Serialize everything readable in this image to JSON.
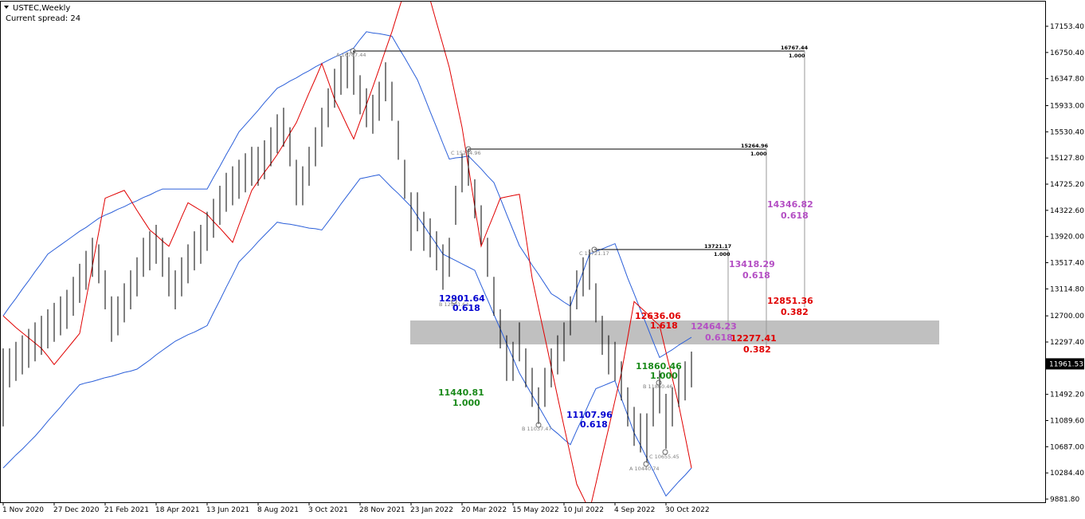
{
  "chart_data": {
    "type": "ohlc",
    "title": "USTEC,Weekly",
    "subtitle": "Current spread: 24",
    "categories": [
      "1 Nov 2020",
      null,
      null,
      null,
      null,
      null,
      null,
      null,
      "27 Dec 2020",
      null,
      null,
      null,
      null,
      null,
      null,
      null,
      "21 Feb 2021",
      null,
      null,
      null,
      null,
      null,
      null,
      null,
      "18 Apr 2021",
      null,
      null,
      null,
      null,
      null,
      null,
      null,
      "13 Jun 2021",
      null,
      null,
      null,
      null,
      null,
      null,
      null,
      "8 Aug 2021",
      null,
      null,
      null,
      null,
      null,
      null,
      null,
      "3 Oct 2021",
      null,
      null,
      null,
      null,
      null,
      null,
      null,
      "28 Nov 2021",
      null,
      null,
      null,
      null,
      null,
      null,
      null,
      "23 Jan 2022",
      null,
      null,
      null,
      null,
      null,
      null,
      null,
      "20 Mar 2022",
      null,
      null,
      null,
      null,
      null,
      null,
      null,
      "15 May 2022",
      null,
      null,
      null,
      null,
      null,
      null,
      null,
      "10 Jul 2022",
      null,
      null,
      null,
      null,
      null,
      null,
      null,
      "4 Sep 2022",
      null,
      null,
      null,
      null,
      null,
      null,
      null,
      "30 Oct 2022",
      null,
      null,
      null,
      null
    ],
    "high": [
      12200,
      12200,
      12300,
      12400,
      12500,
      12600,
      12700,
      12800,
      12900,
      13000,
      13100,
      13300,
      13500,
      13700,
      13900,
      13800,
      13400,
      13000,
      13000,
      13200,
      13400,
      13600,
      13900,
      14000,
      14100,
      13900,
      13600,
      13400,
      13600,
      13800,
      14000,
      14100,
      14300,
      14500,
      14700,
      14900,
      15000,
      15100,
      15200,
      15300,
      15300,
      15400,
      15600,
      15800,
      15900,
      15600,
      15100,
      15000,
      15300,
      15600,
      15900,
      16200,
      16500,
      16700,
      16750,
      16767.44,
      16400,
      16200,
      16100,
      16300,
      16600,
      16300,
      15700,
      15100,
      14600,
      14600,
      14300,
      14200,
      14000,
      13800,
      13900,
      14700,
      15200,
      15264.96,
      14800,
      14400,
      13900,
      13300,
      12800,
      12400,
      12300,
      12600,
      12200,
      11900,
      11600,
      11900,
      12200,
      12400,
      12600,
      13000,
      13400,
      13600,
      13721.17,
      13200,
      12700,
      12400,
      12300,
      12000,
      11600,
      11300,
      11200,
      11200,
      11600,
      11860.46,
      11500,
      11600,
      11900,
      12000,
      12150
    ],
    "low": [
      11000,
      11600,
      11700,
      11800,
      11900,
      12000,
      12100,
      12200,
      12300,
      12400,
      12500,
      12700,
      12900,
      13100,
      13300,
      13200,
      12800,
      12300,
      12400,
      12600,
      12800,
      13000,
      13300,
      13400,
      13500,
      13300,
      13000,
      12800,
      13000,
      13200,
      13400,
      13500,
      13700,
      13900,
      14100,
      14300,
      14400,
      14500,
      14600,
      14700,
      14700,
      14800,
      15000,
      15200,
      15300,
      15000,
      14400,
      14400,
      14700,
      15000,
      15300,
      15600,
      15900,
      16100,
      16200,
      16100,
      15800,
      15600,
      15500,
      15700,
      16000,
      15700,
      15100,
      14500,
      13700,
      14000,
      13700,
      13600,
      13400,
      13100,
      13300,
      14100,
      14600,
      14700,
      14200,
      13800,
      13300,
      12700,
      12200,
      11700,
      11700,
      12000,
      11600,
      11300,
      11037.47,
      11300,
      11600,
      11800,
      12000,
      12400,
      12800,
      13000,
      13100,
      12600,
      12100,
      11800,
      11700,
      11400,
      11000,
      10700,
      10600,
      10440.74,
      11000,
      11200,
      10655.45,
      11000,
      11300,
      11400,
      11600
    ],
    "bar_color": "#000000",
    "series": [
      {
        "color": "#2b5fd9",
        "values": [
          12700,
          12840,
          12970,
          13110,
          13240,
          13380,
          13510,
          13650,
          13720,
          13790,
          13860,
          13930,
          14000,
          14060,
          14130,
          14200,
          14250,
          14290,
          14340,
          14380,
          14430,
          14470,
          14520,
          14560,
          14610,
          14650,
          14650,
          14650,
          14650,
          14650,
          14650,
          14650,
          14650,
          14830,
          15000,
          15180,
          15350,
          15530,
          15640,
          15750,
          15860,
          15980,
          16090,
          16200,
          16250,
          16310,
          16360,
          16420,
          16470,
          16530,
          16580,
          16630,
          16680,
          16720,
          16770,
          16820,
          16950,
          17070,
          17050,
          17040,
          17020,
          17000,
          16830,
          16670,
          16500,
          16330,
          16090,
          15840,
          15600,
          15350,
          15110,
          15130,
          15140,
          15160,
          15060,
          14960,
          14850,
          14750,
          14510,
          14260,
          14020,
          13780,
          13630,
          13480,
          13340,
          13190,
          13040,
          12980,
          12910,
          12850,
          13120,
          13380,
          13650,
          13690,
          13730,
          13770,
          13810,
          13550,
          13280,
          13040,
          12790,
          12550,
          12300,
          12060,
          12120,
          12180,
          12250,
          12310,
          12370
        ]
      },
      {
        "color": "#2b5fd9",
        "values": [
          10360,
          10460,
          10560,
          10650,
          10750,
          10850,
          10960,
          11080,
          11190,
          11300,
          11420,
          11530,
          11640,
          11670,
          11690,
          11720,
          11750,
          11770,
          11800,
          11830,
          11850,
          11880,
          11950,
          12020,
          12100,
          12170,
          12240,
          12310,
          12360,
          12410,
          12450,
          12500,
          12550,
          12750,
          12940,
          13140,
          13330,
          13530,
          13630,
          13730,
          13840,
          13940,
          14040,
          14140,
          14120,
          14110,
          14090,
          14070,
          14050,
          14040,
          14020,
          14150,
          14280,
          14420,
          14550,
          14680,
          14810,
          14830,
          14850,
          14870,
          14770,
          14670,
          14580,
          14480,
          14380,
          14230,
          14090,
          13940,
          13800,
          13650,
          13600,
          13550,
          13500,
          13450,
          13400,
          13170,
          12950,
          12720,
          12500,
          12270,
          12050,
          11820,
          11650,
          11480,
          11310,
          11140,
          10970,
          10890,
          10800,
          10720,
          10940,
          11150,
          11370,
          11580,
          11620,
          11660,
          11700,
          11430,
          11170,
          10900,
          10710,
          10510,
          10320,
          10120,
          9930,
          10040,
          10150,
          10250,
          10360
        ]
      },
      {
        "color": "#e00000",
        "values": [
          12700,
          12610,
          12520,
          12440,
          12360,
          12280,
          12200,
          12080,
          11950,
          12070,
          12190,
          12310,
          12430,
          12950,
          13470,
          13990,
          14510,
          14550,
          14590,
          14630,
          14480,
          14320,
          14170,
          14020,
          13940,
          13850,
          13770,
          13990,
          14220,
          14440,
          14380,
          14320,
          14260,
          14150,
          14050,
          13940,
          13830,
          14100,
          14360,
          14630,
          14770,
          14910,
          15040,
          15180,
          15340,
          15510,
          15670,
          15900,
          16130,
          16350,
          16580,
          16310,
          16030,
          15830,
          15620,
          15420,
          15690,
          15950,
          16220,
          16500,
          16790,
          17070,
          17390,
          17700,
          17670,
          17630,
          17600,
          17560,
          17210,
          16870,
          16520,
          16060,
          15600,
          14990,
          14380,
          13770,
          14020,
          14260,
          14510,
          14530,
          14550,
          14570,
          13930,
          13280,
          12820,
          12370,
          11910,
          11450,
          11000,
          10560,
          10110,
          9910,
          9700,
          10120,
          10550,
          10970,
          11400,
          11820,
          12370,
          12920,
          12830,
          12740,
          12640,
          12550,
          12140,
          11740,
          11330,
          10850,
          10360
        ]
      }
    ],
    "ylim": [
      9833,
      17533
    ],
    "yticks": [
      {
        "value": 17153.4,
        "label": "17153.40"
      },
      {
        "value": 16750.4,
        "label": "16750.40"
      },
      {
        "value": 16347.8,
        "label": "16347.80"
      },
      {
        "value": 15933,
        "label": "15933.00"
      },
      {
        "value": 15530.4,
        "label": "15530.40"
      },
      {
        "value": 15127.8,
        "label": "15127.80"
      },
      {
        "value": 14725.2,
        "label": "14725.20"
      },
      {
        "value": 14322.6,
        "label": "14322.60"
      },
      {
        "value": 13920,
        "label": "13920.00"
      },
      {
        "value": 13517.4,
        "label": "13517.40"
      },
      {
        "value": 13114.8,
        "label": "13114.80"
      },
      {
        "value": 12700,
        "label": "12700.00"
      },
      {
        "value": 12297.4,
        "label": "12297.40"
      },
      {
        "value": 11492.2,
        "label": "11492.20"
      },
      {
        "value": 11089.6,
        "label": "11089.60"
      },
      {
        "value": 10687,
        "label": "10687.00"
      },
      {
        "value": 10284.4,
        "label": "10284.40"
      },
      {
        "value": 9881.8,
        "label": "9881.80"
      }
    ],
    "current_price": 11961.53,
    "annotations": {
      "a1": "A 16767.44",
      "a1v": "16767.44",
      "a1r": "1.000",
      "c1": "C 15264.96",
      "c1v": "15264.96",
      "c1r": "1.000",
      "c2": "C 13721.17",
      "c2v": "13721.17",
      "c2r": "1.000",
      "b1": "B 12901.64",
      "b1v": "12901.64",
      "b1r": "0.618",
      "b2": "B 11037.47",
      "a2": "A 10440.74",
      "c3": "C 10655.45",
      "b3": "B 11860.46",
      "g1v": "11440.81",
      "g1r": "1.000",
      "bl2v": "11107.96",
      "bl2r": "0.618",
      "g2v": "11860.46",
      "g2r": "1.000",
      "r1v": "12636.06",
      "r1r": "1.618",
      "v1v": "12464.23",
      "v1r": "0.618",
      "r2v": "12277.41",
      "r2r": "0.382",
      "v2v": "13418.29",
      "v2r": "0.618",
      "r3v": "12851.36",
      "r3r": "0.382",
      "v3v": "14346.82",
      "v3r": "0.618"
    }
  }
}
